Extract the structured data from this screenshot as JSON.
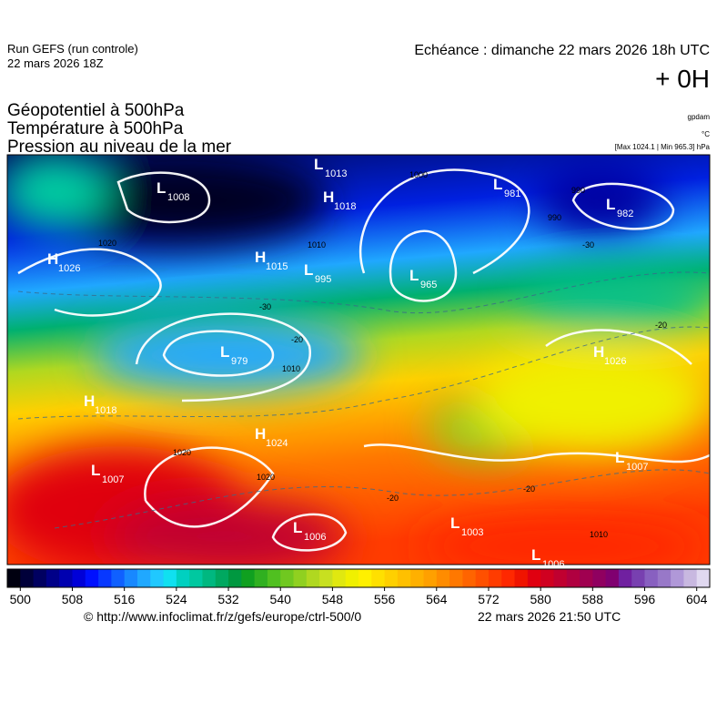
{
  "header": {
    "run": "Run GEFS (run controle)",
    "run_time": "22 mars 2026 18Z",
    "valid": "Echéance : dimanche 22 mars 2026 18h UTC",
    "lead": "+ 0H",
    "fields": [
      "Géopotentiel à 500hPa",
      "Température à 500hPa",
      "Pression au niveau de la mer"
    ],
    "units": [
      "gpdam",
      "°C",
      "[Max 1024.1 | Min 965.3] hPa"
    ]
  },
  "centers": [
    {
      "type": "L",
      "value": 1008
    },
    {
      "type": "L",
      "value": 1013
    },
    {
      "type": "H",
      "value": 1018
    },
    {
      "type": "L",
      "value": 981
    },
    {
      "type": "L",
      "value": 982
    },
    {
      "type": "H",
      "value": 1026
    },
    {
      "type": "H",
      "value": 1015
    },
    {
      "type": "L",
      "value": 995
    },
    {
      "type": "L",
      "value": 965
    },
    {
      "type": "L",
      "value": 979
    },
    {
      "type": "H",
      "value": 1026
    },
    {
      "type": "H",
      "value": 1018
    },
    {
      "type": "H",
      "value": 1024
    },
    {
      "type": "L",
      "value": 1007
    },
    {
      "type": "L",
      "value": 1007
    },
    {
      "type": "L",
      "value": 1006
    },
    {
      "type": "L",
      "value": 1003
    },
    {
      "type": "L",
      "value": 1006
    }
  ],
  "isobar_labels": [
    1000,
    990,
    1010,
    1020,
    1010,
    1020,
    1020,
    1010,
    990
  ],
  "temperature_labels": [
    -30,
    -20,
    -20,
    -30,
    -20,
    -20
  ],
  "colorbar": {
    "lim": [
      498,
      606
    ],
    "ticks": [
      500,
      508,
      516,
      524,
      532,
      540,
      548,
      556,
      564,
      572,
      580,
      588,
      596,
      604
    ],
    "colors": [
      "#000010",
      "#00003a",
      "#000060",
      "#000088",
      "#0000b0",
      "#0000d8",
      "#0010ff",
      "#0838ff",
      "#1060ff",
      "#1888ff",
      "#20a8ff",
      "#20c8ff",
      "#10e0f0",
      "#00d0c0",
      "#00c8a0",
      "#00b880",
      "#00a860",
      "#009840",
      "#10a020",
      "#30b020",
      "#50c020",
      "#70c820",
      "#90d020",
      "#b0d820",
      "#c8e020",
      "#e0e810",
      "#f0f000",
      "#fff000",
      "#ffe000",
      "#ffd000",
      "#ffc000",
      "#ffb000",
      "#ffa000",
      "#ff8c00",
      "#ff7800",
      "#ff6400",
      "#ff5000",
      "#ff3c00",
      "#ff2800",
      "#f01400",
      "#e00010",
      "#d00020",
      "#c00030",
      "#b00040",
      "#a00050",
      "#900060",
      "#800070",
      "#7020a0",
      "#7840b0",
      "#8860c0",
      "#9878c8",
      "#b098d8",
      "#c8b8e0",
      "#e0d8f0"
    ]
  },
  "footer": {
    "source": "© http://www.infoclimat.fr/z/gefs/europe/ctrl-500/0",
    "generated": "22 mars 2026 21:50 UTC"
  }
}
